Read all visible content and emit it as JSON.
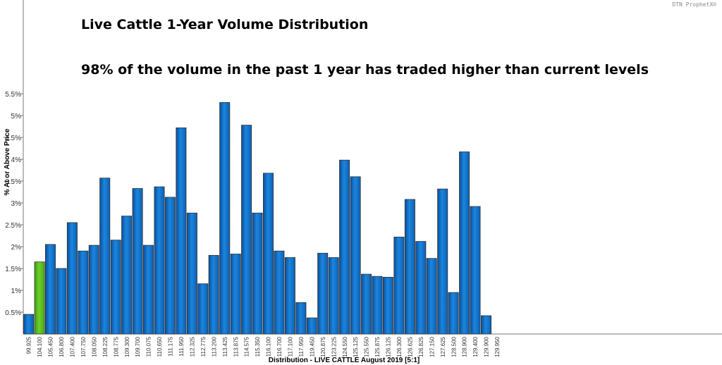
{
  "chart_data": {
    "type": "bar",
    "title": "Live Cattle 1-Year Volume Distribution",
    "subtitle": "98% of the volume in the past 1 year has traded higher than current levels",
    "ylabel": "% At or Above Price",
    "xlabel": "Distribution - LIVE CATTLE August 2019  [5:1]",
    "watermark": "DTN ProphetX®",
    "ylim": [
      0,
      5.75
    ],
    "yticks": [
      0.5,
      1,
      1.5,
      2,
      2.5,
      3,
      3.5,
      4,
      4.5,
      5,
      5.5
    ],
    "ytick_labels": [
      "0.5%",
      "1%",
      "1.5%",
      "2%",
      "2.5%",
      "3%",
      "3.5%",
      "4%",
      "4.5%",
      "5%",
      "5.5%"
    ],
    "categories": [
      "99.925",
      "104.100",
      "105.450",
      "106.800",
      "107.400",
      "107.750",
      "108.050",
      "108.225",
      "108.775",
      "109.300",
      "109.700",
      "110.075",
      "110.650",
      "111.175",
      "111.950",
      "112.325",
      "112.775",
      "113.200",
      "113.425",
      "113.875",
      "114.575",
      "115.350",
      "116.100",
      "116.700",
      "117.100",
      "117.950",
      "119.450",
      "120.875",
      "123.225",
      "124.550",
      "125.125",
      "125.550",
      "125.875",
      "126.125",
      "126.300",
      "126.625",
      "126.825",
      "127.150",
      "127.625",
      "128.500",
      "128.900",
      "129.400",
      "129.900",
      "129.950"
    ],
    "values": [
      0.45,
      1.65,
      2.05,
      1.5,
      2.55,
      1.9,
      2.03,
      3.57,
      2.15,
      2.7,
      3.33,
      2.03,
      3.37,
      3.13,
      4.72,
      2.77,
      1.15,
      1.8,
      5.3,
      1.83,
      4.78,
      2.77,
      3.68,
      1.9,
      1.75,
      0.72,
      0.37,
      1.85,
      1.75,
      3.98,
      3.6,
      1.37,
      1.32,
      1.3,
      2.22,
      3.08,
      2.12,
      1.73,
      3.32,
      0.95,
      4.17,
      2.92,
      0.42,
      null
    ],
    "highlight_category": "104.100",
    "colors": {
      "bar": "#1874cd",
      "bar_highlight": "#5cbf1e",
      "bar_stroke": "#333333",
      "highlight_tick": "#3aa020"
    }
  }
}
